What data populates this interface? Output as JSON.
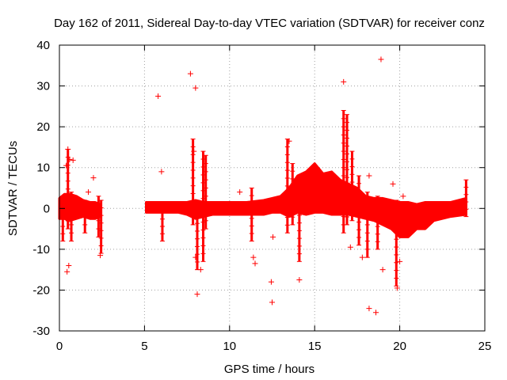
{
  "chart_data": {
    "type": "scatter",
    "title": "Day 162 of 2011, Sidereal Day-to-day VTEC variation (SDTVAR) for receiver conz",
    "xlabel": "GPS time / hours",
    "ylabel": "SDTVAR / TECUs",
    "xlim": [
      0,
      25
    ],
    "ylim": [
      -30,
      40
    ],
    "xticks": [
      0,
      5,
      10,
      15,
      20,
      25
    ],
    "yticks": [
      -30,
      -20,
      -10,
      0,
      10,
      20,
      30,
      40
    ],
    "grid": true,
    "marker": "+",
    "colors": {
      "points": "#ff0000",
      "grid": "#a0a0a0",
      "axis": "#000000"
    },
    "band_series": [
      {
        "name": "block-1",
        "x": [
          0.0,
          0.3,
          0.6,
          1.0,
          1.4,
          1.8,
          2.1,
          2.4
        ],
        "lo": [
          -2.5,
          -2.5,
          -3.0,
          -2.5,
          -2.0,
          -2.5,
          -2.5,
          -2.0
        ],
        "hi": [
          2.5,
          3.5,
          3.5,
          3.0,
          2.0,
          1.5,
          1.5,
          1.0
        ]
      },
      {
        "name": "block-2",
        "x": [
          5.1,
          6.0,
          7.0,
          7.5,
          8.0,
          8.5,
          9.0,
          10.0,
          11.0,
          12.0,
          12.5,
          13.0,
          13.5,
          14.0,
          14.5,
          15.0,
          15.5,
          16.0,
          16.5,
          17.0,
          17.5,
          18.0,
          18.5,
          19.0,
          19.5,
          20.0,
          20.5,
          21.0,
          21.5,
          22.0,
          23.0,
          23.9
        ],
        "lo": [
          -1.0,
          -1.0,
          -1.0,
          -1.5,
          -2.5,
          -2.0,
          -1.5,
          -1.5,
          -1.5,
          -1.5,
          -1.0,
          -1.0,
          -2.0,
          -1.0,
          -1.5,
          -1.0,
          -1.0,
          -1.5,
          -1.5,
          -1.5,
          -2.0,
          -2.5,
          -3.0,
          -4.0,
          -5.0,
          -7.0,
          -7.0,
          -5.0,
          -5.0,
          -3.0,
          -2.0,
          -1.5
        ],
        "hi": [
          1.5,
          1.5,
          1.5,
          1.5,
          2.0,
          1.5,
          1.5,
          1.5,
          1.5,
          2.0,
          2.5,
          3.0,
          5.0,
          8.0,
          9.0,
          11.0,
          8.5,
          9.0,
          7.0,
          6.0,
          5.0,
          3.0,
          2.5,
          2.5,
          2.0,
          1.5,
          1.5,
          1.0,
          1.5,
          1.5,
          1.5,
          2.5
        ]
      }
    ],
    "streaks": [
      {
        "x": 0.2,
        "y0": -8.0,
        "y1": 1.0
      },
      {
        "x": 0.5,
        "y0": -5.0,
        "y1": 14.5
      },
      {
        "x": 0.7,
        "y0": -8.0,
        "y1": 4.0
      },
      {
        "x": 1.5,
        "y0": -6.0,
        "y1": 2.0
      },
      {
        "x": 2.3,
        "y0": -7.0,
        "y1": 3.0
      },
      {
        "x": 2.45,
        "y0": -11.0,
        "y1": 2.0
      },
      {
        "x": 6.05,
        "y0": -8.0,
        "y1": 1.0
      },
      {
        "x": 7.85,
        "y0": -4.0,
        "y1": 17.0
      },
      {
        "x": 8.1,
        "y0": -15.0,
        "y1": 2.0
      },
      {
        "x": 8.45,
        "y0": -13.0,
        "y1": 14.0
      },
      {
        "x": 8.6,
        "y0": -5.0,
        "y1": 13.0
      },
      {
        "x": 11.3,
        "y0": -8.0,
        "y1": 5.0
      },
      {
        "x": 13.4,
        "y0": -6.0,
        "y1": 17.0
      },
      {
        "x": 13.7,
        "y0": -4.0,
        "y1": 11.0
      },
      {
        "x": 14.1,
        "y0": -13.0,
        "y1": 4.0
      },
      {
        "x": 16.7,
        "y0": -6.0,
        "y1": 24.0
      },
      {
        "x": 16.9,
        "y0": -4.0,
        "y1": 23.0
      },
      {
        "x": 17.2,
        "y0": -3.0,
        "y1": 14.0
      },
      {
        "x": 17.6,
        "y0": -9.0,
        "y1": 8.0
      },
      {
        "x": 18.1,
        "y0": -12.0,
        "y1": 4.0
      },
      {
        "x": 18.7,
        "y0": -10.0,
        "y1": 3.0
      },
      {
        "x": 19.8,
        "y0": -19.0,
        "y1": 2.0
      },
      {
        "x": 23.9,
        "y0": -2.0,
        "y1": 7.0
      }
    ],
    "outliers": [
      [
        0.5,
        14.5
      ],
      [
        0.6,
        12.0
      ],
      [
        0.8,
        11.8
      ],
      [
        0.4,
        10.5
      ],
      [
        0.55,
        -14.0
      ],
      [
        0.45,
        -15.5
      ],
      [
        1.7,
        4.0
      ],
      [
        2.0,
        7.5
      ],
      [
        2.4,
        -11.5
      ],
      [
        5.8,
        27.5
      ],
      [
        6.0,
        9.0
      ],
      [
        7.7,
        33.0
      ],
      [
        8.0,
        29.5
      ],
      [
        7.9,
        14.0
      ],
      [
        8.1,
        -21.0
      ],
      [
        8.3,
        -15.0
      ],
      [
        8.0,
        -12.0
      ],
      [
        10.6,
        4.0
      ],
      [
        11.4,
        -12.0
      ],
      [
        11.5,
        -13.5
      ],
      [
        12.45,
        -18.0
      ],
      [
        12.5,
        -23.0
      ],
      [
        12.55,
        -7.0
      ],
      [
        13.5,
        16.5
      ],
      [
        14.1,
        -17.5
      ],
      [
        16.7,
        31.0
      ],
      [
        17.1,
        -9.5
      ],
      [
        17.8,
        -12.0
      ],
      [
        18.2,
        -24.5
      ],
      [
        18.6,
        -25.5
      ],
      [
        18.9,
        36.5
      ],
      [
        19.0,
        -15.0
      ],
      [
        19.85,
        -19.5
      ],
      [
        20.0,
        -13.0
      ],
      [
        20.2,
        3.0
      ],
      [
        19.6,
        6.0
      ],
      [
        18.2,
        8.0
      ]
    ]
  }
}
